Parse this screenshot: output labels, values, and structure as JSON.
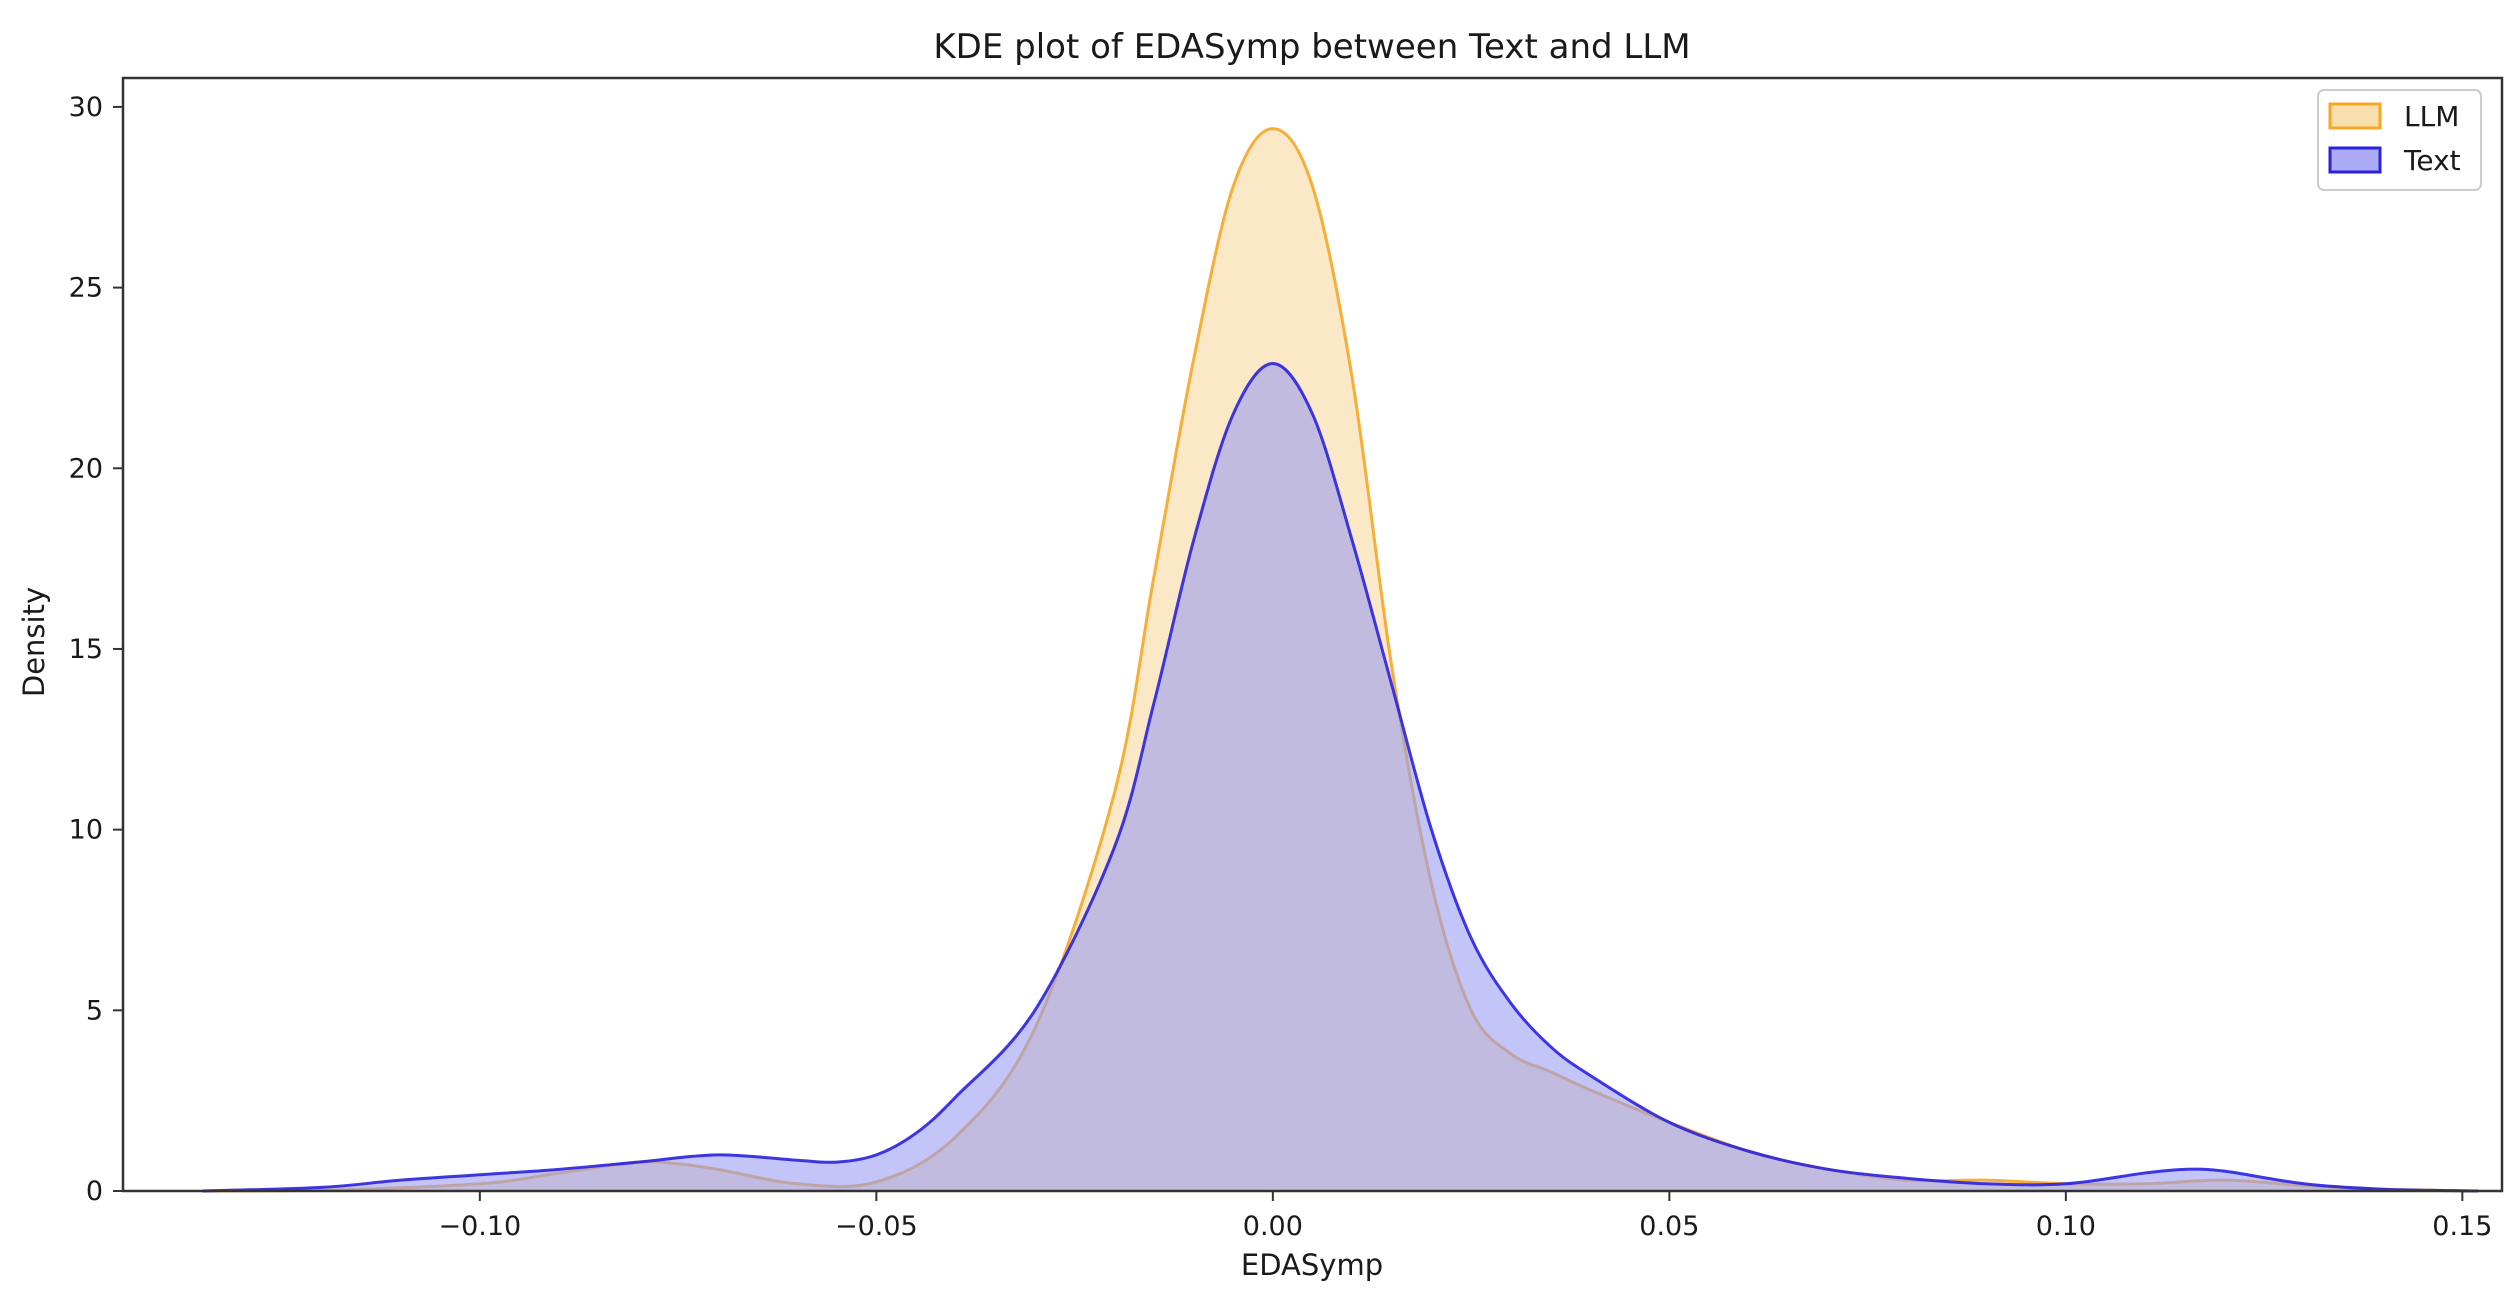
{
  "chart_data": {
    "type": "area",
    "title": "KDE plot of EDASymp between Text and LLM",
    "xlabel": "EDASymp",
    "ylabel": "Density",
    "xlim": [
      -0.145,
      0.155
    ],
    "ylim": [
      0,
      30.8
    ],
    "xticks": [
      -0.1,
      -0.05,
      0.0,
      0.05,
      0.1,
      0.15
    ],
    "xtick_labels": [
      "−0.10",
      "−0.05",
      "0.00",
      "0.05",
      "0.10",
      "0.15"
    ],
    "yticks": [
      0,
      5,
      10,
      15,
      20,
      25,
      30
    ],
    "ytick_labels": [
      "0",
      "5",
      "10",
      "15",
      "20",
      "25",
      "30"
    ],
    "grid": false,
    "legend": {
      "position": "top-right",
      "entries": [
        "LLM",
        "Text"
      ]
    },
    "series": [
      {
        "name": "LLM",
        "color": "#f5a623",
        "fill": "#f9d9a0",
        "x": [
          -0.135,
          -0.12,
          -0.1,
          -0.09,
          -0.08,
          -0.075,
          -0.07,
          -0.06,
          -0.05,
          -0.04,
          -0.03,
          -0.02,
          -0.015,
          -0.01,
          -0.005,
          0.0,
          0.005,
          0.01,
          0.015,
          0.02,
          0.025,
          0.03,
          0.035,
          0.04,
          0.05,
          0.06,
          0.07,
          0.08,
          0.09,
          0.1,
          0.11,
          0.12,
          0.13,
          0.14,
          0.152
        ],
        "y": [
          0.0,
          0.02,
          0.2,
          0.5,
          0.8,
          0.75,
          0.6,
          0.2,
          0.25,
          1.5,
          4.5,
          11.0,
          17.0,
          23.0,
          27.8,
          29.4,
          27.8,
          22.5,
          14.5,
          8.5,
          5.0,
          3.8,
          3.3,
          2.8,
          1.9,
          1.1,
          0.6,
          0.3,
          0.3,
          0.2,
          0.2,
          0.3,
          0.15,
          0.05,
          0.0
        ]
      },
      {
        "name": "Text",
        "color": "#2a22e0",
        "fill": "#9b9cf2",
        "x": [
          -0.135,
          -0.12,
          -0.11,
          -0.1,
          -0.09,
          -0.08,
          -0.07,
          -0.06,
          -0.055,
          -0.05,
          -0.045,
          -0.04,
          -0.03,
          -0.02,
          -0.015,
          -0.01,
          -0.005,
          0.0,
          0.005,
          0.01,
          0.015,
          0.02,
          0.025,
          0.03,
          0.035,
          0.04,
          0.05,
          0.06,
          0.07,
          0.08,
          0.09,
          0.1,
          0.11,
          0.115,
          0.12,
          0.13,
          0.14,
          0.152
        ],
        "y": [
          0.0,
          0.1,
          0.3,
          0.45,
          0.6,
          0.8,
          1.0,
          0.85,
          0.8,
          1.0,
          1.6,
          2.6,
          5.0,
          9.5,
          13.5,
          18.0,
          21.5,
          22.9,
          21.5,
          18.0,
          14.0,
          10.0,
          7.0,
          5.2,
          4.0,
          3.2,
          1.9,
          1.1,
          0.6,
          0.35,
          0.2,
          0.2,
          0.5,
          0.6,
          0.55,
          0.2,
          0.05,
          0.0
        ]
      }
    ]
  }
}
